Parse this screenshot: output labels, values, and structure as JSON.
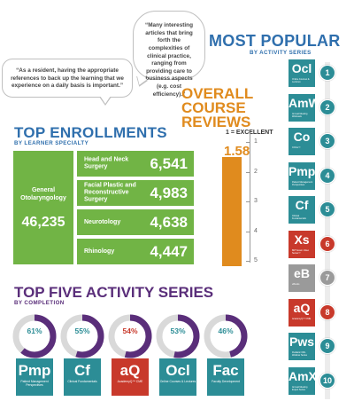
{
  "quotes": {
    "resident": "“As a resident, having the appropriate references to back up the learning that we experience on a daily basis is important.”",
    "articles": "“Many interesting articles that bring forth the complexities of clinical practice, ranging from providing care to business aspects (e.g. cost efficiency).”"
  },
  "most_popular": {
    "title": "MOST POPULAR",
    "subtitle": "BY ACTIVITY SERIES",
    "items": [
      {
        "rank": "1",
        "symbol": "Ocl",
        "caption": "Online Courses & Lectures",
        "color": "#2c8d96"
      },
      {
        "rank": "2",
        "symbol": "AmW",
        "caption": "Annual Meeting Webcasts",
        "color": "#2c8d96"
      },
      {
        "rank": "3",
        "symbol": "Co",
        "caption": "COGs™",
        "color": "#2c8d96"
      },
      {
        "rank": "4",
        "symbol": "Pmp",
        "caption": "Patient Management Perspectives",
        "color": "#2c8d96"
      },
      {
        "rank": "5",
        "symbol": "Cf",
        "caption": "Clinical Fundamentals",
        "color": "#2c8d96"
      },
      {
        "rank": "6",
        "symbol": "Xs",
        "caption": "BRT Exam Video Series™",
        "color": "#c8392b"
      },
      {
        "rank": "7",
        "symbol": "eB",
        "caption": "eBooks",
        "color": "#9a9a9a"
      },
      {
        "rank": "8",
        "symbol": "aQ",
        "caption": "AcademyQ™ CME",
        "color": "#c8392b"
      },
      {
        "rank": "9",
        "symbol": "Pws",
        "caption": "Pediatric ORL Webinar Series",
        "color": "#2c8d96"
      },
      {
        "rank": "10",
        "symbol": "AmX",
        "caption": "Annual Meeting Expert Series",
        "color": "#2c8d96"
      }
    ]
  },
  "reviews": {
    "title_line1": "OVERALL",
    "title_line2": "COURSE",
    "title_line3": "REVIEWS",
    "subtitle": "1 = EXCELLENT",
    "value": "1.58",
    "ticks": [
      "1",
      "2",
      "3",
      "4",
      "5"
    ],
    "score": 1.58
  },
  "enrollments": {
    "title": "TOP ENROLLMENTS",
    "subtitle": "BY LEARNER SPECIALTY",
    "main_label": "General Otolaryngology",
    "main_value": "46,235",
    "rows": [
      {
        "label": "Head and Neck Surgery",
        "value": "6,541"
      },
      {
        "label": "Facial Plastic and Reconstructive Surgery",
        "value": "4,983"
      },
      {
        "label": "Neurotology",
        "value": "4,638"
      },
      {
        "label": "Rhinology",
        "value": "4,447"
      }
    ]
  },
  "top_five": {
    "title": "TOP FIVE ACTIVITY SERIES",
    "subtitle": "BY COMPLETION",
    "items": [
      {
        "pct": "61%",
        "pct_value": 0.61,
        "symbol": "Pmp",
        "caption": "Patient Management Perspectives",
        "color": "#2c8d96"
      },
      {
        "pct": "55%",
        "pct_value": 0.55,
        "symbol": "Cf",
        "caption": "Clinical Fundamentals",
        "color": "#2c8d96"
      },
      {
        "pct": "54%",
        "pct_value": 0.54,
        "symbol": "aQ",
        "caption": "AcademyQ™ CME",
        "color": "#c8392b"
      },
      {
        "pct": "53%",
        "pct_value": 0.53,
        "symbol": "Ocl",
        "caption": "Online Courses & Lectures",
        "color": "#2c8d96"
      },
      {
        "pct": "46%",
        "pct_value": 0.46,
        "symbol": "Fac",
        "caption": "Faculty Development",
        "color": "#2c8d96"
      }
    ]
  },
  "colors": {
    "blue": "#2f6fad",
    "orange": "#e08b1e",
    "purple": "#5a2e7a",
    "green": "#71b445",
    "teal": "#2c8d96",
    "red": "#c8392b"
  }
}
